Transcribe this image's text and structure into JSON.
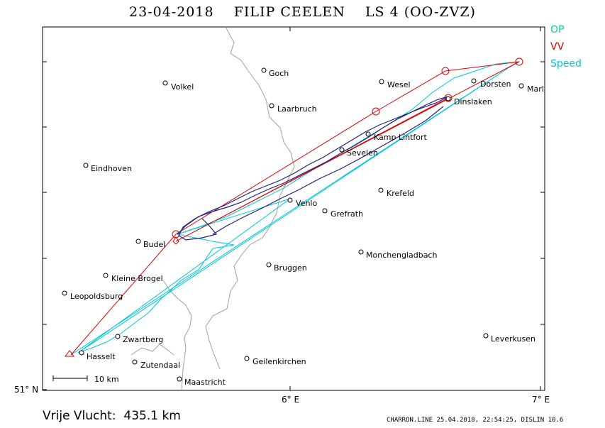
{
  "header": {
    "date": "23-04-2018",
    "pilot": "FILIP CEELEN",
    "glider": "LS 4 (OO-ZVZ)"
  },
  "legend": {
    "op": {
      "label": "OP",
      "color": "#00d890"
    },
    "vv": {
      "label": "VV",
      "color": "#e00000"
    },
    "speed": {
      "label": "Speed",
      "color": "#00c8d8"
    }
  },
  "axes": {
    "y_label": "51° N",
    "x_ticks": [
      "6° E",
      "7° E"
    ]
  },
  "scale_bar": {
    "label": "10 km"
  },
  "footer": {
    "distance_label": "Vrije Vlucht:",
    "distance_value": "435.1 km",
    "credit": "CHARRON.LINE 25.04.2018, 22:54:25, DISLIN 10.6"
  },
  "places": [
    {
      "name": "Goch"
    },
    {
      "name": "Volkel"
    },
    {
      "name": "Laarbruch"
    },
    {
      "name": "Wesel"
    },
    {
      "name": "Dorsten"
    },
    {
      "name": "Marl"
    },
    {
      "name": "Dinslaken"
    },
    {
      "name": "Kamp Lintfort"
    },
    {
      "name": "Sevelen"
    },
    {
      "name": "Eindhoven"
    },
    {
      "name": "Krefeld"
    },
    {
      "name": "Venlo"
    },
    {
      "name": "Grefrath"
    },
    {
      "name": "Budel"
    },
    {
      "name": "Monchengladbach"
    },
    {
      "name": "Bruggen"
    },
    {
      "name": "Kleine Brogel"
    },
    {
      "name": "Leopoldsburg"
    },
    {
      "name": "Zwartberg"
    },
    {
      "name": "Leverkusen"
    },
    {
      "name": "Hasselt"
    },
    {
      "name": "Zutendaal"
    },
    {
      "name": "Geilenkirchen"
    },
    {
      "name": "Maastricht"
    }
  ]
}
